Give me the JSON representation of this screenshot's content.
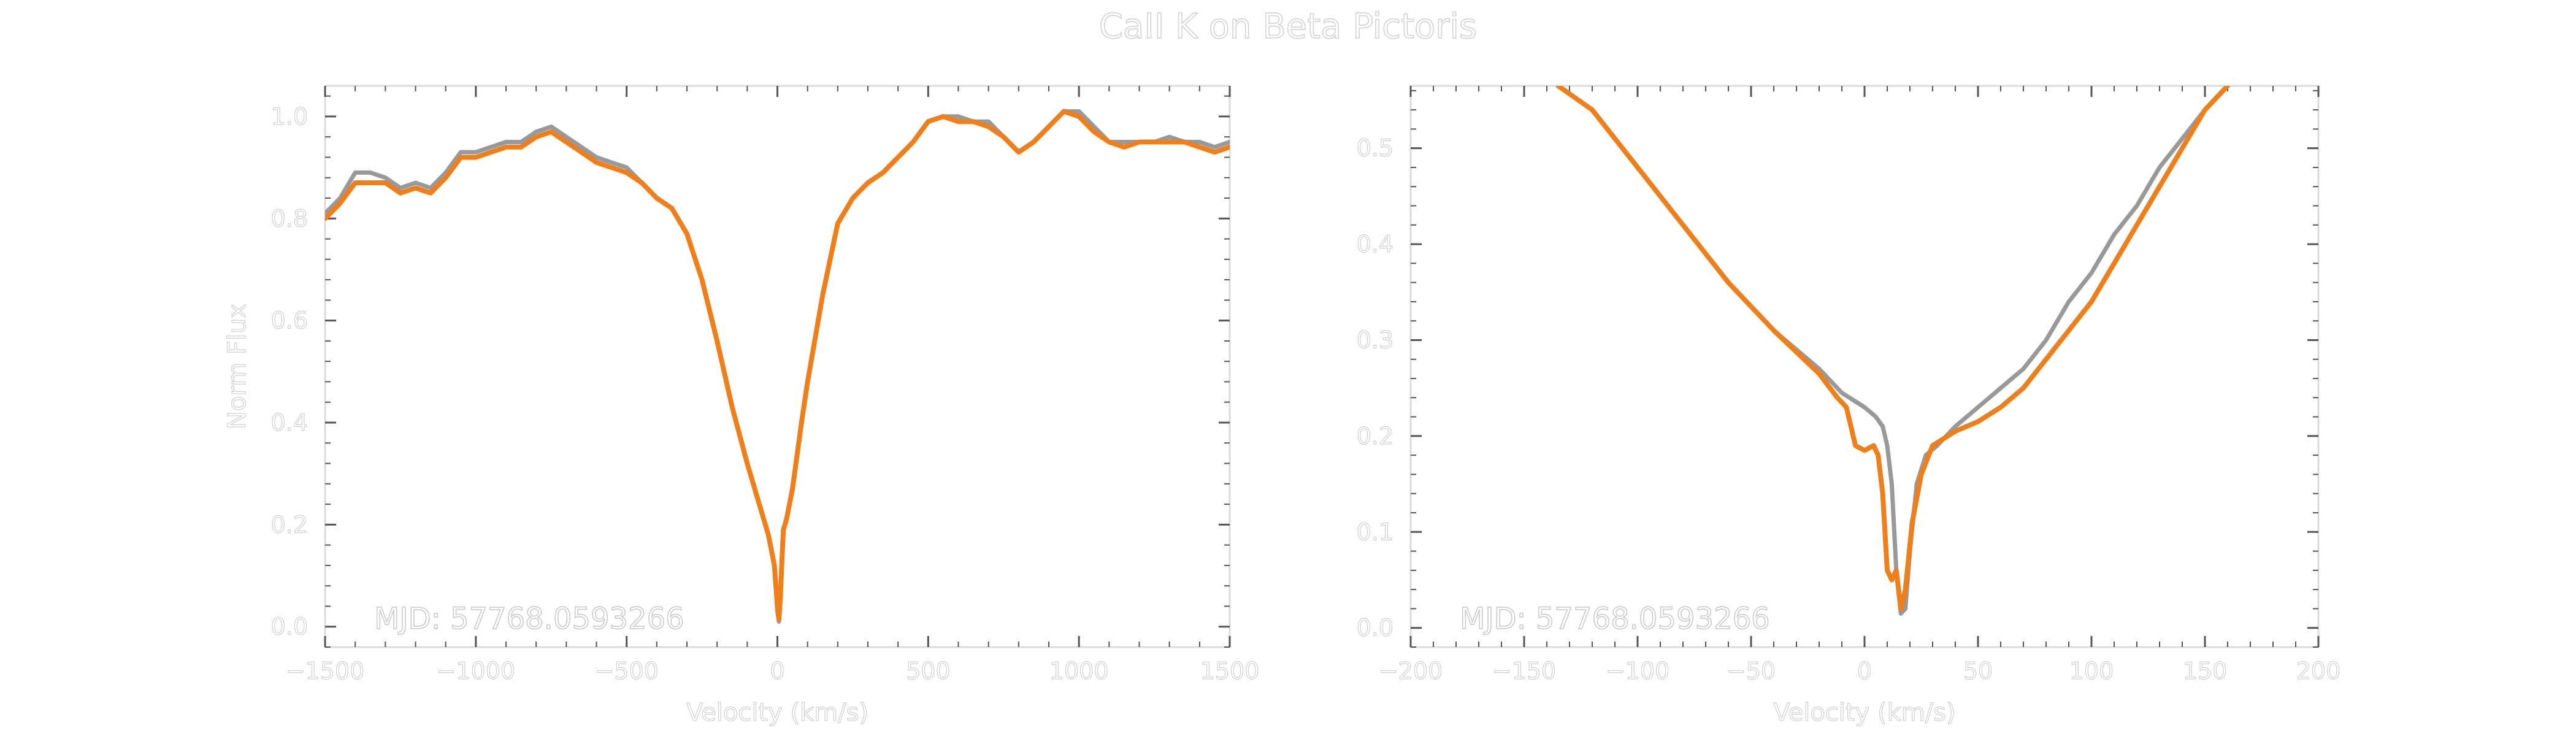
{
  "figure": {
    "title": "CaII K on Beta Pictoris",
    "text_color": "#ffffff",
    "axis_color": "#dcdcdc",
    "series_colors": {
      "gray": "#999999",
      "orange": "#ee7f1b"
    }
  },
  "chart_data": [
    {
      "type": "line",
      "xlabel": "Velocity (km/s)",
      "ylabel": "Norm Flux",
      "annotation": "MJD: 57768.0593266",
      "xlim": [
        -1500,
        1500
      ],
      "ylim": [
        -0.04,
        1.06
      ],
      "xticks": [
        -1500,
        -1000,
        -500,
        0,
        500,
        1000,
        1500
      ],
      "xtick_labels": [
        "−1500",
        "−1000",
        "−500",
        "0",
        "500",
        "1000",
        "1500"
      ],
      "yticks": [
        0.0,
        0.2,
        0.4,
        0.6,
        0.8,
        1.0
      ],
      "ytick_labels": [
        "0.0",
        "0.2",
        "0.4",
        "0.6",
        "0.8",
        "1.0"
      ],
      "grid": false,
      "series": [
        {
          "color": "#999999",
          "x": [
            -1500,
            -1450,
            -1400,
            -1350,
            -1300,
            -1250,
            -1200,
            -1150,
            -1100,
            -1050,
            -1000,
            -950,
            -900,
            -850,
            -800,
            -750,
            -700,
            -650,
            -600,
            -550,
            -500,
            -450,
            -400,
            -350,
            -300,
            -250,
            -200,
            -150,
            -100,
            -60,
            -30,
            -10,
            0,
            5,
            10,
            15,
            20,
            30,
            50,
            80,
            100,
            150,
            200,
            250,
            300,
            350,
            400,
            450,
            500,
            550,
            600,
            650,
            700,
            750,
            800,
            850,
            900,
            950,
            1000,
            1050,
            1100,
            1150,
            1200,
            1250,
            1300,
            1350,
            1400,
            1450,
            1500
          ],
          "y": [
            0.81,
            0.84,
            0.89,
            0.89,
            0.88,
            0.86,
            0.87,
            0.86,
            0.89,
            0.93,
            0.93,
            0.94,
            0.95,
            0.95,
            0.97,
            0.98,
            0.96,
            0.94,
            0.92,
            0.91,
            0.9,
            0.87,
            0.84,
            0.82,
            0.77,
            0.68,
            0.56,
            0.43,
            0.32,
            0.24,
            0.18,
            0.12,
            0.03,
            0.01,
            0.05,
            0.12,
            0.19,
            0.21,
            0.27,
            0.4,
            0.48,
            0.65,
            0.79,
            0.84,
            0.87,
            0.89,
            0.92,
            0.95,
            0.99,
            1.0,
            1.0,
            0.99,
            0.99,
            0.96,
            0.93,
            0.95,
            0.98,
            1.01,
            1.01,
            0.98,
            0.95,
            0.95,
            0.95,
            0.95,
            0.96,
            0.95,
            0.95,
            0.94,
            0.95
          ]
        },
        {
          "color": "#ee7f1b",
          "x": [
            -1500,
            -1450,
            -1400,
            -1350,
            -1300,
            -1250,
            -1200,
            -1150,
            -1100,
            -1050,
            -1000,
            -950,
            -900,
            -850,
            -800,
            -750,
            -700,
            -650,
            -600,
            -550,
            -500,
            -450,
            -400,
            -350,
            -300,
            -250,
            -200,
            -150,
            -100,
            -60,
            -30,
            -10,
            0,
            5,
            10,
            15,
            20,
            30,
            50,
            80,
            100,
            150,
            200,
            250,
            300,
            350,
            400,
            450,
            500,
            550,
            600,
            650,
            700,
            750,
            800,
            850,
            900,
            950,
            1000,
            1050,
            1100,
            1150,
            1200,
            1250,
            1300,
            1350,
            1400,
            1450,
            1500
          ],
          "y": [
            0.8,
            0.83,
            0.87,
            0.87,
            0.87,
            0.85,
            0.86,
            0.85,
            0.88,
            0.92,
            0.92,
            0.93,
            0.94,
            0.94,
            0.96,
            0.97,
            0.95,
            0.93,
            0.91,
            0.9,
            0.89,
            0.87,
            0.84,
            0.82,
            0.77,
            0.68,
            0.56,
            0.43,
            0.32,
            0.24,
            0.18,
            0.12,
            0.04,
            0.015,
            0.06,
            0.13,
            0.19,
            0.21,
            0.27,
            0.4,
            0.48,
            0.65,
            0.79,
            0.84,
            0.87,
            0.89,
            0.92,
            0.95,
            0.99,
            1.0,
            0.99,
            0.99,
            0.98,
            0.96,
            0.93,
            0.95,
            0.98,
            1.01,
            1.0,
            0.97,
            0.95,
            0.94,
            0.95,
            0.95,
            0.95,
            0.95,
            0.94,
            0.93,
            0.94
          ]
        }
      ]
    },
    {
      "type": "line",
      "xlabel": "Velocity (km/s)",
      "ylabel": "",
      "annotation": "MJD: 57768.0593266",
      "xlim": [
        -200,
        200
      ],
      "ylim": [
        -0.02,
        0.565
      ],
      "xticks": [
        -200,
        -150,
        -100,
        -50,
        0,
        50,
        100,
        150,
        200
      ],
      "xtick_labels": [
        "−200",
        "−150",
        "−100",
        "−50",
        "0",
        "50",
        "100",
        "150",
        "200"
      ],
      "yticks": [
        0.0,
        0.1,
        0.2,
        0.3,
        0.4,
        0.5
      ],
      "ytick_labels": [
        "0.0",
        "0.1",
        "0.2",
        "0.3",
        "0.4",
        "0.5"
      ],
      "grid": false,
      "series": [
        {
          "color": "#999999",
          "x": [
            -135,
            -120,
            -100,
            -80,
            -60,
            -40,
            -20,
            -10,
            0,
            5,
            8,
            10,
            12,
            14,
            16,
            18,
            20,
            23,
            27,
            32,
            40,
            50,
            60,
            70,
            80,
            90,
            100,
            110,
            120,
            130,
            140,
            150,
            160
          ],
          "y": [
            0.565,
            0.54,
            0.48,
            0.42,
            0.36,
            0.31,
            0.27,
            0.245,
            0.23,
            0.22,
            0.21,
            0.19,
            0.15,
            0.06,
            0.015,
            0.02,
            0.08,
            0.15,
            0.18,
            0.19,
            0.21,
            0.23,
            0.25,
            0.27,
            0.3,
            0.34,
            0.37,
            0.41,
            0.44,
            0.48,
            0.51,
            0.54,
            0.565
          ]
        },
        {
          "color": "#ee7f1b",
          "x": [
            -135,
            -120,
            -100,
            -80,
            -60,
            -40,
            -20,
            -12,
            -8,
            -4,
            0,
            4,
            6,
            8,
            10,
            12,
            14,
            16,
            18,
            21,
            25,
            30,
            40,
            50,
            60,
            70,
            80,
            90,
            100,
            110,
            120,
            130,
            140,
            150,
            160
          ],
          "y": [
            0.565,
            0.54,
            0.48,
            0.42,
            0.36,
            0.31,
            0.265,
            0.24,
            0.23,
            0.19,
            0.185,
            0.19,
            0.18,
            0.14,
            0.06,
            0.05,
            0.06,
            0.02,
            0.04,
            0.11,
            0.16,
            0.19,
            0.205,
            0.215,
            0.23,
            0.25,
            0.28,
            0.31,
            0.34,
            0.38,
            0.42,
            0.46,
            0.5,
            0.54,
            0.565
          ]
        }
      ]
    }
  ]
}
